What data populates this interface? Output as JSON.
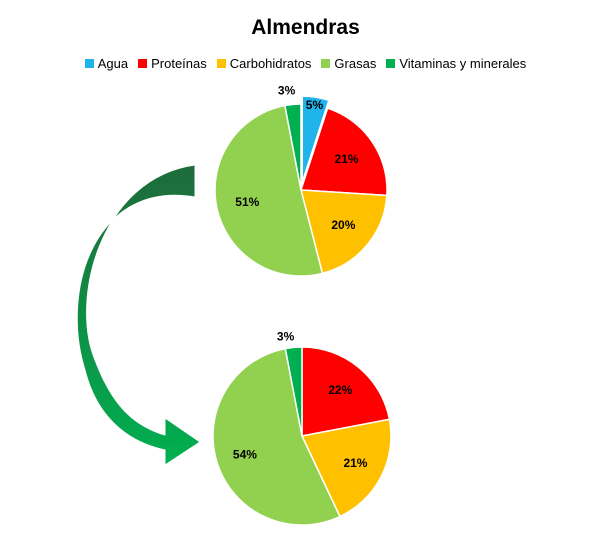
{
  "chart_data": [
    {
      "type": "pie",
      "title": "Almendras",
      "legend_placement": "top",
      "categories": [
        "Agua",
        "Proteínas",
        "Carbohidratos",
        "Grasas",
        "Vitaminas y minerales"
      ],
      "values": [
        5,
        21,
        20,
        51,
        3
      ],
      "labels": [
        "5%",
        "21%",
        "20%",
        "51%",
        "3%"
      ],
      "colors": [
        "#1FB5EA",
        "#FF0000",
        "#FFC000",
        "#92D050",
        "#00B050"
      ],
      "exploded": [
        "Agua"
      ]
    },
    {
      "type": "pie",
      "categories": [
        "Proteínas",
        "Carbohidratos",
        "Grasas",
        "Vitaminas y minerales"
      ],
      "values": [
        22,
        21,
        54,
        3
      ],
      "labels": [
        "22%",
        "21%",
        "54%",
        "3%"
      ],
      "colors": [
        "#FF0000",
        "#FFC000",
        "#92D050",
        "#00B050"
      ]
    }
  ],
  "legend": [
    {
      "label": "Agua",
      "color": "#1FB5EA"
    },
    {
      "label": "Proteínas",
      "color": "#FF0000"
    },
    {
      "label": "Carbohidratos",
      "color": "#FFC000"
    },
    {
      "label": "Grasas",
      "color": "#92D050"
    },
    {
      "label": "Vitaminas y minerales",
      "color": "#00B050"
    }
  ],
  "arrow": {
    "color_dark": "#1E6B3A",
    "color_light": "#00B050"
  }
}
